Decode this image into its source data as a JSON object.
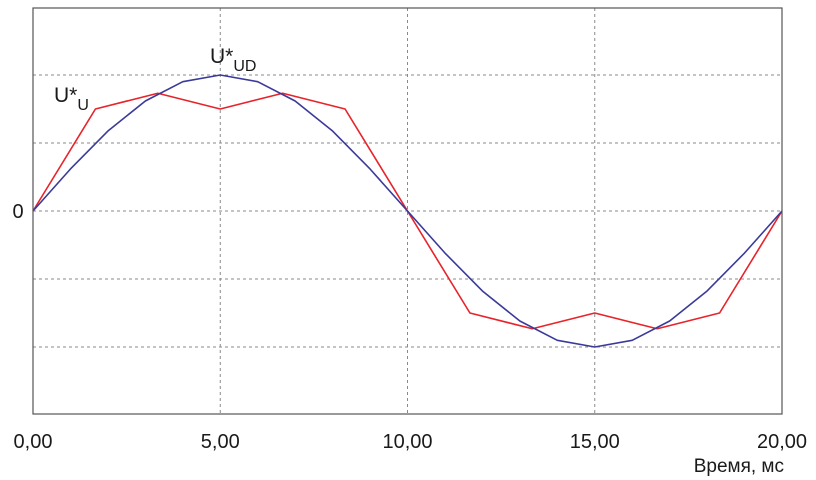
{
  "chart_data": {
    "type": "line",
    "xlabel": "Время, мс",
    "ylabel": "",
    "xlim": [
      0,
      20
    ],
    "ylim": [
      -1.5,
      1.5
    ],
    "x_ticks": [
      0,
      5,
      10,
      15,
      20
    ],
    "x_tick_labels": [
      "0,00",
      "5,00",
      "10,00",
      "15,00",
      "20,00"
    ],
    "y_ticks": [
      -1,
      -0.5,
      0,
      0.5,
      1
    ],
    "y_tick_labels": [
      "",
      "",
      "0",
      "",
      ""
    ],
    "grid": true,
    "series": [
      {
        "name": "U*U",
        "label_main": "U*",
        "label_sub": "U",
        "color": "#e8232a",
        "x": [
          0,
          1.667,
          3.333,
          5.0,
          6.667,
          8.333,
          10.0,
          11.667,
          13.333,
          15.0,
          16.667,
          18.333,
          20.0
        ],
        "y": [
          0,
          0.75,
          0.866,
          0.75,
          0.866,
          0.75,
          0,
          -0.75,
          -0.866,
          -0.75,
          -0.866,
          -0.75,
          0
        ]
      },
      {
        "name": "U*UD",
        "label_main": "U*",
        "label_sub": "UD",
        "color": "#3a3a9a",
        "x": [
          0,
          1,
          2,
          3,
          4,
          5,
          6,
          7,
          8,
          9,
          10,
          11,
          12,
          13,
          14,
          15,
          16,
          17,
          18,
          19,
          20
        ],
        "y": [
          0,
          0.309,
          0.588,
          0.809,
          0.951,
          1.0,
          0.951,
          0.809,
          0.588,
          0.309,
          0,
          -0.309,
          -0.588,
          -0.809,
          -0.951,
          -1.0,
          -0.951,
          -0.809,
          -0.588,
          -0.309,
          0
        ]
      }
    ]
  }
}
